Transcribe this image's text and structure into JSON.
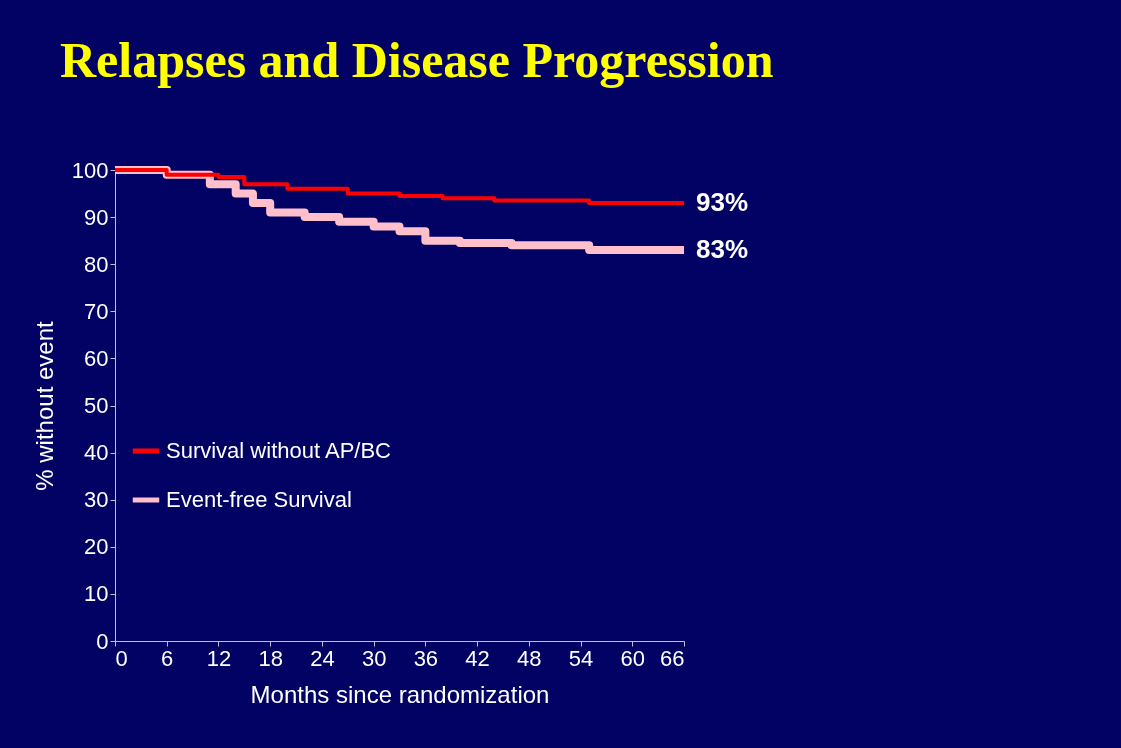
{
  "chart_data": {
    "type": "step",
    "title": "Relapses and Disease Progression",
    "xlabel": "Months since randomization",
    "ylabel": "% without event",
    "series": [
      {
        "name": "Survival without AP/BC",
        "color": "#ff0000",
        "x": [
          0,
          6,
          12,
          15,
          20,
          27,
          33,
          38,
          44,
          55,
          66
        ],
        "values": [
          100,
          99,
          98.5,
          97,
          96,
          95,
          94.5,
          94,
          93.5,
          93,
          93
        ]
      },
      {
        "name": "Event-free Survival",
        "color": "#ffc0cb",
        "x": [
          0,
          6,
          11,
          14,
          16,
          18,
          22,
          26,
          30,
          33,
          36,
          40,
          46,
          55,
          66
        ],
        "values": [
          100,
          99,
          97,
          95,
          93,
          91,
          90,
          89,
          88,
          87,
          85,
          84.5,
          84,
          83,
          83
        ]
      }
    ],
    "annotations": [
      {
        "text": "93%",
        "x": 66,
        "y": 93
      },
      {
        "text": "83%",
        "x": 66,
        "y": 83
      }
    ],
    "xlim": [
      0,
      66
    ],
    "xticks": [
      0,
      6,
      12,
      18,
      24,
      30,
      36,
      42,
      48,
      54,
      60,
      66
    ],
    "ylim": [
      0,
      100
    ],
    "yticks": [
      0,
      10,
      20,
      30,
      40,
      50,
      60,
      70,
      80,
      90,
      100
    ],
    "legend": "bottom left",
    "grid": false
  }
}
